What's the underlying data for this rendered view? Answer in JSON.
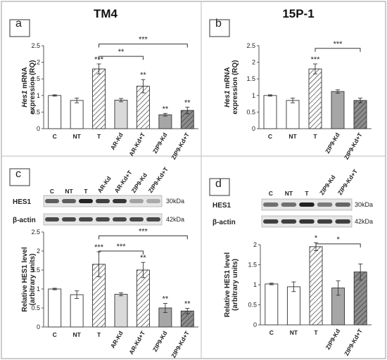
{
  "headers": {
    "left": "TM4",
    "right": "15P-1"
  },
  "colors": {
    "white": "#ffffff",
    "light_gray": "#d9d9d9",
    "gray": "#a6a6a6",
    "dark_gray": "#7f7f7f",
    "hatch": "#333333",
    "band": "#222222",
    "blot_bg": "#e6e6e6"
  },
  "chart_data": [
    {
      "panel": "a",
      "type": "bar",
      "ylabel_lines": [
        {
          "parts": [
            {
              "t": "Hes1",
              "italic": true
            },
            {
              "t": " mRNA",
              "italic": false
            }
          ]
        },
        {
          "parts": [
            {
              "t": "expression (RQ)",
              "italic": false
            }
          ]
        }
      ],
      "ylim": [
        0,
        2.5
      ],
      "yticks": [
        0,
        0.5,
        1,
        1.5,
        2,
        2.5
      ],
      "categories": [
        "C",
        "NT",
        "T",
        "AR-Kd",
        "AR-Kd+T",
        "ZIP9-Kd",
        "ZIP9-Kd+T"
      ],
      "values": [
        1.0,
        0.85,
        1.8,
        0.86,
        1.28,
        0.42,
        0.55
      ],
      "errors": [
        0.02,
        0.07,
        0.15,
        0.05,
        0.2,
        0.04,
        0.1
      ],
      "fills": [
        "white",
        "white",
        "hatch",
        "light_gray",
        "hatch",
        "gray",
        "darkhatch"
      ],
      "marks": [
        "",
        "",
        "***",
        "",
        "**",
        "**",
        "**"
      ],
      "brackets": [
        {
          "from": 2,
          "to": 4,
          "y": 2.18,
          "label": "**"
        },
        {
          "from": 2,
          "to": 6,
          "y": 2.55,
          "label": "***"
        }
      ]
    },
    {
      "panel": "b",
      "type": "bar",
      "ylabel_lines": [
        {
          "parts": [
            {
              "t": "Hes1",
              "italic": true
            },
            {
              "t": " mRNA",
              "italic": false
            }
          ]
        },
        {
          "parts": [
            {
              "t": "expression (RQ)",
              "italic": false
            }
          ]
        }
      ],
      "ylim": [
        0,
        2.5
      ],
      "yticks": [
        0,
        0.5,
        1,
        1.5,
        2,
        2.5
      ],
      "categories": [
        "C",
        "NT",
        "T",
        "ZIP9-Kd",
        "ZIP9-Kd+T"
      ],
      "values": [
        1.0,
        0.85,
        1.8,
        1.12,
        0.85
      ],
      "errors": [
        0.02,
        0.07,
        0.15,
        0.05,
        0.07
      ],
      "fills": [
        "white",
        "white",
        "hatch",
        "gray",
        "darkhatch"
      ],
      "marks": [
        "",
        "",
        "***",
        "",
        ""
      ],
      "brackets": [
        {
          "from": 2,
          "to": 4,
          "y": 2.42,
          "label": "***"
        }
      ]
    },
    {
      "panel": "c",
      "type": "bar",
      "ylabel_lines": [
        {
          "parts": [
            {
              "t": "Relative HES1 level",
              "italic": false
            }
          ]
        },
        {
          "parts": [
            {
              "t": "(arbitrary units)",
              "italic": false
            }
          ]
        }
      ],
      "ylim": [
        0,
        2.5
      ],
      "yticks": [
        0,
        0.5,
        1,
        1.5,
        2,
        2.5
      ],
      "categories": [
        "C",
        "NT",
        "T",
        "AR-Kd",
        "AR-Kd+T",
        "ZIP9-Kd",
        "ZIP9-Kd+T"
      ],
      "values": [
        1.0,
        0.85,
        1.65,
        0.86,
        1.5,
        0.5,
        0.42
      ],
      "errors": [
        0.02,
        0.1,
        0.33,
        0.04,
        0.2,
        0.12,
        0.07
      ],
      "fills": [
        "white",
        "white",
        "hatch",
        "light_gray",
        "hatch",
        "gray",
        "darkhatch"
      ],
      "marks": [
        "",
        "",
        "***",
        "",
        "**",
        "**",
        "**"
      ],
      "brackets": [
        {
          "from": 2,
          "to": 4,
          "y": 2.0,
          "label": "***"
        },
        {
          "from": 2,
          "to": 6,
          "y": 2.4,
          "label": "***"
        }
      ]
    },
    {
      "panel": "d",
      "type": "bar",
      "ylabel_lines": [
        {
          "parts": [
            {
              "t": "Relative HES1 level",
              "italic": false
            }
          ]
        },
        {
          "parts": [
            {
              "t": "(arbitrary units)",
              "italic": false
            }
          ]
        }
      ],
      "ylim": [
        0,
        2
      ],
      "yticks": [
        0,
        0.5,
        1,
        1.5,
        2
      ],
      "categories": [
        "C",
        "NT",
        "T",
        "ZIP9-Kd",
        "ZIP9-Kd+T"
      ],
      "values": [
        1.02,
        0.95,
        1.95,
        0.92,
        1.32
      ],
      "errors": [
        0.02,
        0.12,
        0.1,
        0.18,
        0.2
      ],
      "fills": [
        "white",
        "white",
        "hatch",
        "gray",
        "darkhatch"
      ],
      "marks": [
        "",
        "",
        "*",
        "",
        ""
      ],
      "brackets": [
        {
          "from": 2,
          "to": 4,
          "y": 2.02,
          "label": "*"
        }
      ]
    }
  ],
  "blots": [
    {
      "panel": "c",
      "lanes": [
        "C",
        "NT",
        "T",
        "AR-Kd",
        "AR-Kd+T",
        "ZIP9-Kd",
        "ZIP9-Kd+T"
      ],
      "rows": [
        {
          "label": "HES1",
          "kda": "30kDa",
          "intensity": [
            0.7,
            0.7,
            1.0,
            0.85,
            0.9,
            0.35,
            0.3
          ]
        },
        {
          "label": "β-actin",
          "kda": "42kDa",
          "intensity": [
            0.8,
            0.8,
            0.8,
            0.8,
            0.8,
            0.8,
            0.8
          ]
        }
      ]
    },
    {
      "panel": "d",
      "lanes": [
        "C",
        "NT",
        "T",
        "ZIP9-Kd",
        "ZIP9-Kd+T"
      ],
      "rows": [
        {
          "label": "HES1",
          "kda": "30kDa",
          "intensity": [
            0.6,
            0.6,
            1.0,
            0.55,
            0.65
          ]
        },
        {
          "label": "β-actin",
          "kda": "42kDa",
          "intensity": [
            0.85,
            0.85,
            0.9,
            0.85,
            0.85
          ]
        }
      ]
    }
  ]
}
